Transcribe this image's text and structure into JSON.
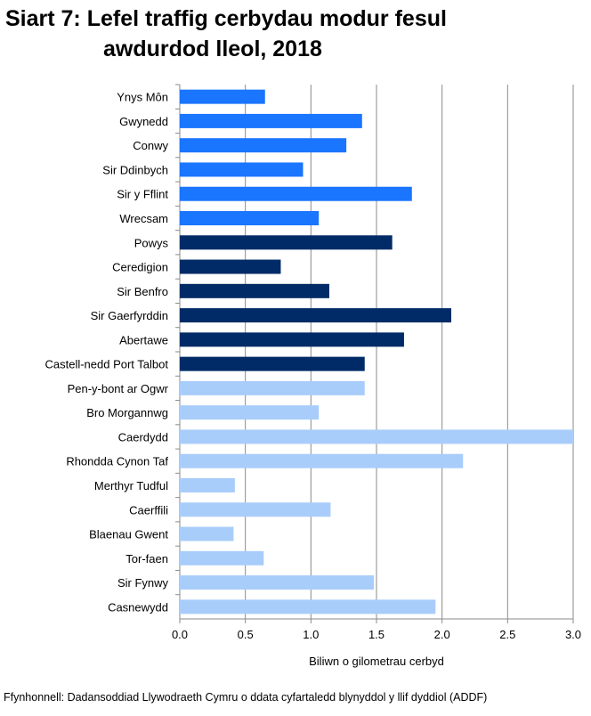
{
  "chart_data": {
    "type": "bar",
    "orientation": "horizontal",
    "title_line1": "Siart 7: Lefel traffig cerbydau modur fesul",
    "title_line2": "awdurdod lleol, 2018",
    "xlabel": "Biliwn o gilometrau cerbyd",
    "ylabel": "",
    "xlim": [
      0,
      3
    ],
    "xticks": [
      "0.0",
      "0.5",
      "1.0",
      "1.5",
      "2.0",
      "2.5",
      "3.0"
    ],
    "grid": true,
    "categories": [
      "Ynys Môn",
      "Gwynedd",
      "Conwy",
      "Sir Ddinbych",
      "Sir y Fflint",
      "Wrecsam",
      "Powys",
      "Ceredigion",
      "Sir Benfro",
      "Sir Gaerfyrddin",
      "Abertawe",
      "Castell-nedd Port Talbot",
      "Pen-y-bont ar Ogwr",
      "Bro Morgannwg",
      "Caerdydd",
      "Rhondda Cynon Taf",
      "Merthyr Tudful",
      "Caerffili",
      "Blaenau Gwent",
      "Tor-faen",
      "Sir Fynwy",
      "Casnewydd"
    ],
    "values": [
      0.65,
      1.39,
      1.27,
      0.94,
      1.77,
      1.06,
      1.62,
      0.77,
      1.14,
      2.07,
      1.71,
      1.41,
      1.41,
      1.06,
      3.05,
      2.16,
      0.42,
      1.15,
      0.41,
      0.64,
      1.48,
      1.95
    ],
    "bar_colors": [
      "#1a75ff",
      "#1a75ff",
      "#1a75ff",
      "#1a75ff",
      "#1a75ff",
      "#1a75ff",
      "#002b66",
      "#002b66",
      "#002b66",
      "#002b66",
      "#002b66",
      "#002b66",
      "#a9cdfa",
      "#a9cdfa",
      "#a9cdfa",
      "#a9cdfa",
      "#a9cdfa",
      "#a9cdfa",
      "#a9cdfa",
      "#a9cdfa",
      "#a9cdfa",
      "#a9cdfa"
    ]
  },
  "source": "Ffynhonnell: Dadansoddiad Llywodraeth Cymru o ddata cyfartaledd blynyddol y llif dyddiol (ADDF)"
}
